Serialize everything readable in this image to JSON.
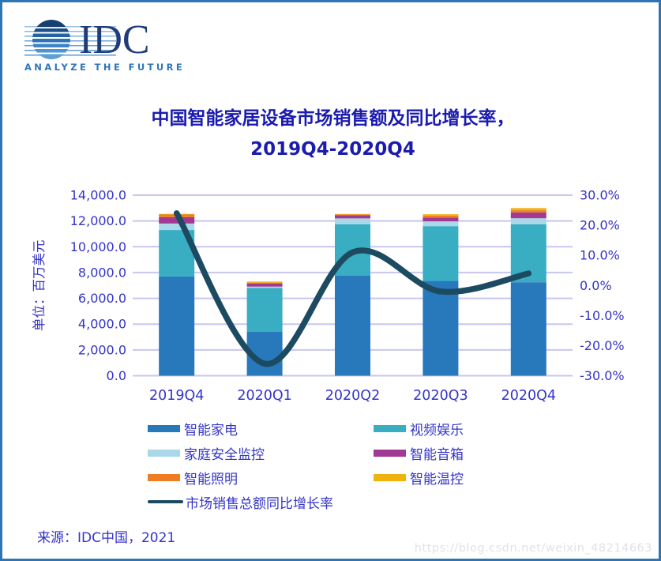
{
  "logo": {
    "name": "IDC",
    "tagline": "ANALYZE THE FUTURE"
  },
  "title": {
    "line1": "中国智能家居设备市场销售额及同比增长率，",
    "line2": "2019Q4-2020Q4"
  },
  "source": "来源：IDC中国，2021",
  "watermark": "https://blog.csdn.net/weixin_48214663",
  "colors": {
    "frame_border": "#2E75B6",
    "grid": "#C7C7F1",
    "axis_text": "#3434C8",
    "title_text": "#1B1BAE",
    "logo_navy": "#1E3C78",
    "logo_tagline": "#2E75B6",
    "watermark_gray": "#E2E2E6"
  },
  "chart_data": {
    "type": "bar",
    "stacked": true,
    "grid": true,
    "legend_position": "bottom",
    "categories": [
      "2019Q4",
      "2020Q1",
      "2020Q2",
      "2020Q3",
      "2020Q4"
    ],
    "series": [
      {
        "name": "智能家电",
        "color": "#2878BC",
        "values": [
          7700,
          3400,
          7750,
          7350,
          7250
        ]
      },
      {
        "name": "视频娱乐",
        "color": "#39AEC3",
        "values": [
          3600,
          3400,
          4000,
          4250,
          4500
        ]
      },
      {
        "name": "家庭安全监控",
        "color": "#A9D9E8",
        "values": [
          500,
          110,
          450,
          370,
          460
        ]
      },
      {
        "name": "智能音箱",
        "color": "#A23A94",
        "values": [
          500,
          230,
          250,
          280,
          450
        ]
      },
      {
        "name": "智能照明",
        "color": "#EE7D23",
        "values": [
          200,
          80,
          60,
          170,
          170
        ]
      },
      {
        "name": "智能温控",
        "color": "#EFB310",
        "values": [
          50,
          80,
          30,
          100,
          170
        ]
      }
    ],
    "line_series": {
      "name": "市场销售总额同比增长率",
      "color": "#1C4B61",
      "values_pct": [
        24,
        -26,
        11,
        -2,
        4
      ]
    },
    "y_left": {
      "label": "单位：百万美元",
      "min": 0,
      "max": 14000,
      "step": 2000,
      "tick_labels": [
        "14,000.0",
        "12,000.0",
        "10,000.0",
        "8,000.0",
        "6,000.0",
        "4,000.0",
        "2,000.0",
        "0.0"
      ]
    },
    "y_right": {
      "min": -30,
      "max": 30,
      "step": 10,
      "tick_labels": [
        "30.0%",
        "20.0%",
        "10.0%",
        "0.0%",
        "-10.0%",
        "-20.0%",
        "-30.0%"
      ]
    }
  }
}
